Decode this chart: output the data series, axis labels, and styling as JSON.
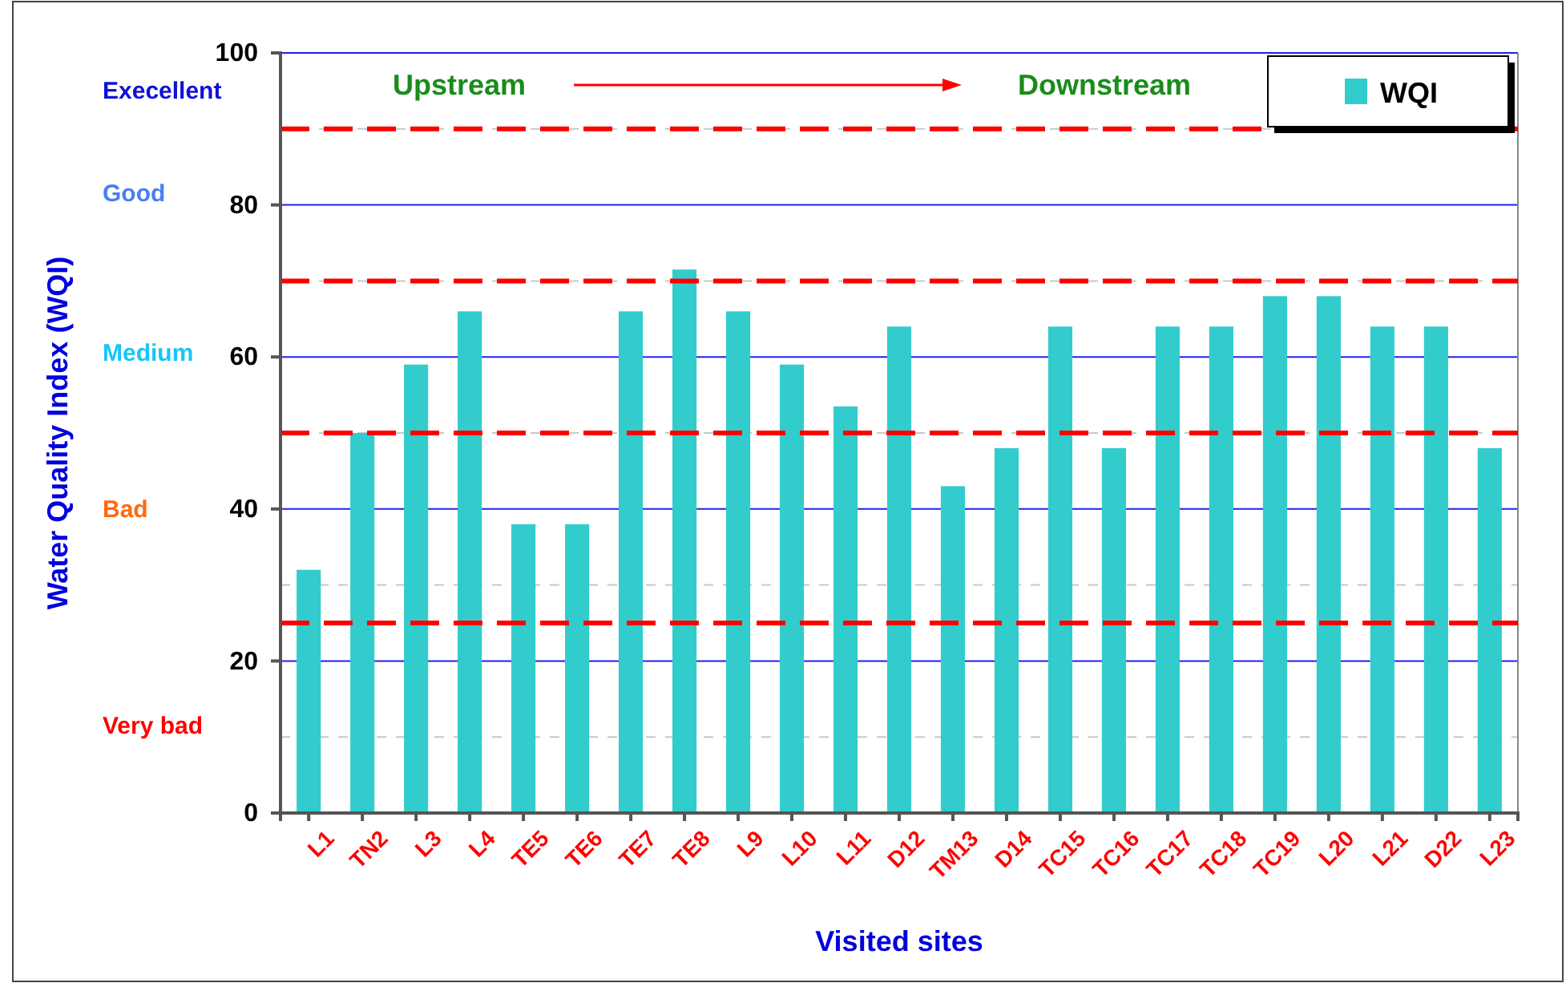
{
  "chart_data": {
    "type": "bar",
    "xlabel": "Visited sites",
    "ylabel": "Water Quality Index (WQI)",
    "categories": [
      "L1",
      "TN2",
      "L3",
      "L4",
      "TE5",
      "TE6",
      "TE7",
      "TE8",
      "L9",
      "L10",
      "L11",
      "D12",
      "TM13",
      "D14",
      "TC15",
      "TC16",
      "TC17",
      "TC18",
      "TC19",
      "L20",
      "L21",
      "D22",
      "L23"
    ],
    "series": [
      {
        "name": "WQI",
        "color": "#33cccc",
        "values": [
          32,
          50,
          59,
          66,
          38,
          38,
          66,
          71.5,
          66,
          59,
          53.5,
          64,
          43,
          48,
          64,
          48,
          64,
          64,
          68,
          68,
          64,
          64,
          48
        ]
      }
    ],
    "ylim": [
      0,
      100
    ],
    "yticks": [
      0,
      20,
      40,
      60,
      80,
      100
    ],
    "grid": "y",
    "legend": "top right",
    "ref_lines": [
      {
        "axis": "y",
        "value": 90,
        "color": "#ff0000",
        "line_style": "dashed"
      },
      {
        "axis": "y",
        "value": 70,
        "color": "#ff0000",
        "line_style": "dashed"
      },
      {
        "axis": "y",
        "value": 50,
        "color": "#ff0000",
        "line_style": "dashed"
      },
      {
        "axis": "y",
        "value": 25,
        "color": "#ff0000",
        "line_style": "dashed"
      }
    ],
    "annotations": [
      "Upstream",
      "Downstream",
      "Execellent",
      "Good",
      "Medium",
      "Bad",
      "Very bad"
    ]
  }
}
